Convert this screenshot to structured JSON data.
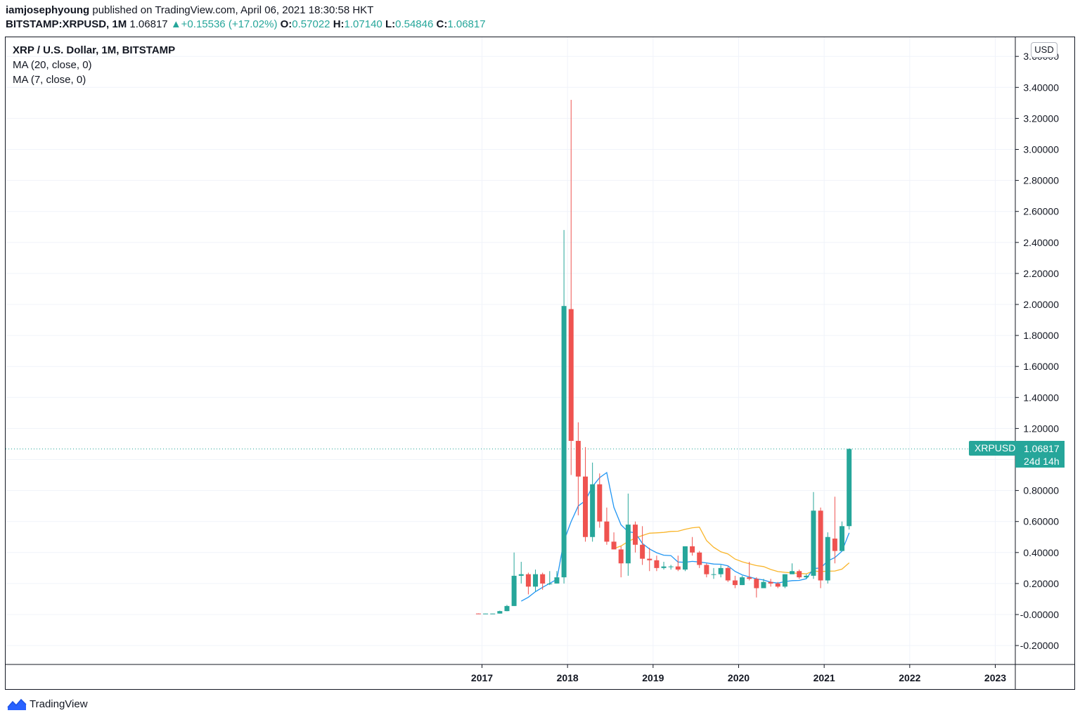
{
  "header": {
    "author": "iamjosephyoung",
    "published_text": " published on TradingView.com, April 06, 2021 18:30:58 HKT",
    "symbol": "BITSTAMP:XRPUSD, 1M",
    "last": "1.06817",
    "change": "+0.15536 (+17.02%)",
    "o_label": "O:",
    "o_value": "0.57022",
    "h_label": "H:",
    "h_value": "1.07140",
    "l_label": "L:",
    "l_value": "0.54846",
    "c_label": "C:",
    "c_value": "1.06817"
  },
  "legend": {
    "title": "XRP / U.S. Dollar, 1M, BITSTAMP",
    "ma20": "MA (20, close, 0)",
    "ma7": "MA (7, close, 0)"
  },
  "axis": {
    "currency": "USD"
  },
  "price_tag": {
    "symbol": "XRPUSD",
    "value": "1.06817",
    "countdown": "24d 14h"
  },
  "footer": {
    "brand": "TradingView"
  },
  "colors": {
    "up": "#26a69a",
    "down": "#ef5350",
    "ma20": "#f9b52b",
    "ma7": "#2196f3",
    "grid": "#f0f3fa"
  },
  "chart_data": {
    "type": "candlestick",
    "title": "XRP / U.S. Dollar, 1M, BITSTAMP",
    "interval": "1M",
    "x_ticks": [
      "2017",
      "2018",
      "2019",
      "2020",
      "2021",
      "2022",
      "2023"
    ],
    "y_ticks": [
      "3.60000",
      "3.40000",
      "3.20000",
      "3.00000",
      "2.80000",
      "2.60000",
      "2.40000",
      "2.20000",
      "2.00000",
      "1.80000",
      "1.60000",
      "1.40000",
      "1.20000",
      "1.00000",
      "0.80000",
      "0.60000",
      "0.40000",
      "0.20000",
      "-0.00000",
      "-0.20000"
    ],
    "ylim": [
      -0.32,
      3.7
    ],
    "last_price": 1.06817,
    "candles": [
      {
        "t": "2016-12",
        "o": 0.0065,
        "h": 0.0075,
        "l": 0.0055,
        "c": 0.0062
      },
      {
        "t": "2017-01",
        "o": 0.0062,
        "h": 0.0068,
        "l": 0.0058,
        "c": 0.0063
      },
      {
        "t": "2017-02",
        "o": 0.0063,
        "h": 0.0068,
        "l": 0.0058,
        "c": 0.0063
      },
      {
        "t": "2017-03",
        "o": 0.0063,
        "h": 0.025,
        "l": 0.006,
        "c": 0.022
      },
      {
        "t": "2017-04",
        "o": 0.022,
        "h": 0.062,
        "l": 0.021,
        "c": 0.055
      },
      {
        "t": "2017-05",
        "o": 0.055,
        "h": 0.4,
        "l": 0.055,
        "c": 0.25
      },
      {
        "t": "2017-06",
        "o": 0.25,
        "h": 0.34,
        "l": 0.2,
        "c": 0.26
      },
      {
        "t": "2017-07",
        "o": 0.26,
        "h": 0.27,
        "l": 0.13,
        "c": 0.18
      },
      {
        "t": "2017-08",
        "o": 0.18,
        "h": 0.29,
        "l": 0.15,
        "c": 0.26
      },
      {
        "t": "2017-09",
        "o": 0.26,
        "h": 0.27,
        "l": 0.16,
        "c": 0.2
      },
      {
        "t": "2017-10",
        "o": 0.2,
        "h": 0.28,
        "l": 0.19,
        "c": 0.2
      },
      {
        "t": "2017-11",
        "o": 0.2,
        "h": 0.28,
        "l": 0.2,
        "c": 0.24
      },
      {
        "t": "2017-12",
        "o": 0.24,
        "h": 2.48,
        "l": 0.2,
        "c": 1.99
      },
      {
        "t": "2018-01",
        "o": 1.97,
        "h": 3.32,
        "l": 0.9,
        "c": 1.12
      },
      {
        "t": "2018-02",
        "o": 1.12,
        "h": 1.24,
        "l": 0.64,
        "c": 0.89
      },
      {
        "t": "2018-03",
        "o": 0.89,
        "h": 1.08,
        "l": 0.47,
        "c": 0.5
      },
      {
        "t": "2018-04",
        "o": 0.5,
        "h": 0.98,
        "l": 0.47,
        "c": 0.84
      },
      {
        "t": "2018-05",
        "o": 0.84,
        "h": 0.91,
        "l": 0.56,
        "c": 0.6
      },
      {
        "t": "2018-06",
        "o": 0.6,
        "h": 0.69,
        "l": 0.45,
        "c": 0.47
      },
      {
        "t": "2018-07",
        "o": 0.47,
        "h": 0.53,
        "l": 0.42,
        "c": 0.42
      },
      {
        "t": "2018-08",
        "o": 0.42,
        "h": 0.44,
        "l": 0.24,
        "c": 0.33
      },
      {
        "t": "2018-09",
        "o": 0.33,
        "h": 0.78,
        "l": 0.25,
        "c": 0.58
      },
      {
        "t": "2018-10",
        "o": 0.58,
        "h": 0.6,
        "l": 0.4,
        "c": 0.45
      },
      {
        "t": "2018-11",
        "o": 0.45,
        "h": 0.57,
        "l": 0.32,
        "c": 0.36
      },
      {
        "t": "2018-12",
        "o": 0.36,
        "h": 0.43,
        "l": 0.28,
        "c": 0.35
      },
      {
        "t": "2019-01",
        "o": 0.35,
        "h": 0.38,
        "l": 0.28,
        "c": 0.3
      },
      {
        "t": "2019-02",
        "o": 0.3,
        "h": 0.34,
        "l": 0.29,
        "c": 0.31
      },
      {
        "t": "2019-03",
        "o": 0.31,
        "h": 0.32,
        "l": 0.29,
        "c": 0.31
      },
      {
        "t": "2019-04",
        "o": 0.31,
        "h": 0.38,
        "l": 0.28,
        "c": 0.29
      },
      {
        "t": "2019-05",
        "o": 0.29,
        "h": 0.44,
        "l": 0.28,
        "c": 0.44
      },
      {
        "t": "2019-06",
        "o": 0.44,
        "h": 0.5,
        "l": 0.38,
        "c": 0.4
      },
      {
        "t": "2019-07",
        "o": 0.4,
        "h": 0.41,
        "l": 0.3,
        "c": 0.32
      },
      {
        "t": "2019-08",
        "o": 0.32,
        "h": 0.33,
        "l": 0.24,
        "c": 0.26
      },
      {
        "t": "2019-09",
        "o": 0.26,
        "h": 0.3,
        "l": 0.23,
        "c": 0.26
      },
      {
        "t": "2019-10",
        "o": 0.26,
        "h": 0.32,
        "l": 0.24,
        "c": 0.3
      },
      {
        "t": "2019-11",
        "o": 0.3,
        "h": 0.31,
        "l": 0.21,
        "c": 0.22
      },
      {
        "t": "2019-12",
        "o": 0.22,
        "h": 0.25,
        "l": 0.17,
        "c": 0.19
      },
      {
        "t": "2020-01",
        "o": 0.19,
        "h": 0.25,
        "l": 0.19,
        "c": 0.24
      },
      {
        "t": "2020-02",
        "o": 0.24,
        "h": 0.34,
        "l": 0.22,
        "c": 0.23
      },
      {
        "t": "2020-03",
        "o": 0.23,
        "h": 0.24,
        "l": 0.11,
        "c": 0.17
      },
      {
        "t": "2020-04",
        "o": 0.17,
        "h": 0.23,
        "l": 0.17,
        "c": 0.21
      },
      {
        "t": "2020-05",
        "o": 0.21,
        "h": 0.23,
        "l": 0.18,
        "c": 0.2
      },
      {
        "t": "2020-06",
        "o": 0.2,
        "h": 0.21,
        "l": 0.17,
        "c": 0.18
      },
      {
        "t": "2020-07",
        "o": 0.18,
        "h": 0.26,
        "l": 0.17,
        "c": 0.26
      },
      {
        "t": "2020-08",
        "o": 0.26,
        "h": 0.33,
        "l": 0.26,
        "c": 0.28
      },
      {
        "t": "2020-09",
        "o": 0.28,
        "h": 0.29,
        "l": 0.23,
        "c": 0.24
      },
      {
        "t": "2020-10",
        "o": 0.24,
        "h": 0.26,
        "l": 0.23,
        "c": 0.25
      },
      {
        "t": "2020-11",
        "o": 0.25,
        "h": 0.79,
        "l": 0.23,
        "c": 0.67
      },
      {
        "t": "2020-12",
        "o": 0.67,
        "h": 0.69,
        "l": 0.17,
        "c": 0.22
      },
      {
        "t": "2021-01",
        "o": 0.22,
        "h": 0.53,
        "l": 0.2,
        "c": 0.5
      },
      {
        "t": "2021-02",
        "o": 0.49,
        "h": 0.76,
        "l": 0.33,
        "c": 0.41
      },
      {
        "t": "2021-03",
        "o": 0.41,
        "h": 0.6,
        "l": 0.41,
        "c": 0.57
      },
      {
        "t": "2021-04",
        "o": 0.57022,
        "h": 1.0714,
        "l": 0.54846,
        "c": 1.06817
      }
    ]
  }
}
